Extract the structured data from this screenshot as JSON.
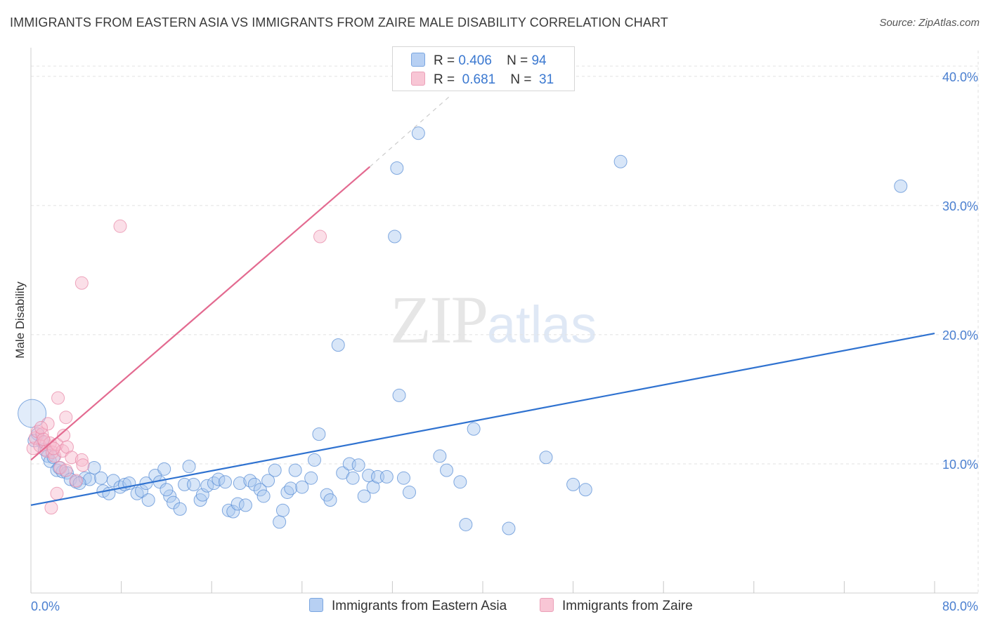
{
  "title": "IMMIGRANTS FROM EASTERN ASIA VS IMMIGRANTS FROM ZAIRE MALE DISABILITY CORRELATION CHART",
  "source": "Source: ZipAtlas.com",
  "watermark": {
    "zip": "ZIP",
    "atlas": "atlas"
  },
  "legend": {
    "rows": [
      {
        "r_label": "R =",
        "r_value": "0.406",
        "n_label": "N =",
        "n_value": "94"
      },
      {
        "r_label": "R =",
        "r_value": "0.681",
        "n_label": "N =",
        "n_value": "31"
      }
    ]
  },
  "colors": {
    "blue_fill": "#a9c8f0",
    "blue_stroke": "#5b8fd6",
    "blue_line": "#2f72d0",
    "pink_fill": "#f6b8cb",
    "pink_stroke": "#e88aa8",
    "pink_line": "#e36a90",
    "grid": "#e2e2e2",
    "tick_text": "#4a7fd0"
  },
  "chart_data": {
    "type": "scatter",
    "xlabel": "",
    "ylabel": "Male Disability",
    "xlim": [
      0,
      80
    ],
    "ylim": [
      0,
      42
    ],
    "x_tick_labels": [
      {
        "value": 0,
        "label": "0.0%"
      },
      {
        "value": 80,
        "label": "80.0%"
      }
    ],
    "y_ticks": [
      {
        "value": 10,
        "label": "10.0%"
      },
      {
        "value": 20,
        "label": "20.0%"
      },
      {
        "value": 30,
        "label": "30.0%"
      },
      {
        "value": 40,
        "label": "40.0%"
      }
    ],
    "grid": "horizontal dashed",
    "legend_position": "top-center",
    "series": [
      {
        "name": "Immigrants from Eastern Asia",
        "color": "#a9c8f0",
        "trend": {
          "x": [
            0,
            80
          ],
          "y": [
            6.8,
            20.1
          ]
        },
        "points": [
          {
            "x": 0.1,
            "y": 13.9,
            "big": true
          },
          {
            "x": 0.6,
            "y": 12.3
          },
          {
            "x": 1.0,
            "y": 11.7
          },
          {
            "x": 1.2,
            "y": 11.1
          },
          {
            "x": 1.5,
            "y": 10.6
          },
          {
            "x": 1.7,
            "y": 10.2
          },
          {
            "x": 2.0,
            "y": 10.5
          },
          {
            "x": 2.3,
            "y": 9.5
          },
          {
            "x": 2.8,
            "y": 9.4
          },
          {
            "x": 3.2,
            "y": 9.3
          },
          {
            "x": 3.5,
            "y": 8.8
          },
          {
            "x": 4.0,
            "y": 8.6
          },
          {
            "x": 4.8,
            "y": 8.9
          },
          {
            "x": 5.2,
            "y": 8.8
          },
          {
            "x": 5.6,
            "y": 9.7
          },
          {
            "x": 6.2,
            "y": 8.9
          },
          {
            "x": 6.4,
            "y": 7.9
          },
          {
            "x": 6.9,
            "y": 7.7
          },
          {
            "x": 7.3,
            "y": 8.7
          },
          {
            "x": 7.9,
            "y": 8.2
          },
          {
            "x": 8.3,
            "y": 8.4
          },
          {
            "x": 8.7,
            "y": 8.5
          },
          {
            "x": 9.4,
            "y": 7.7
          },
          {
            "x": 9.8,
            "y": 7.9
          },
          {
            "x": 10.2,
            "y": 8.5
          },
          {
            "x": 10.4,
            "y": 7.2
          },
          {
            "x": 11.0,
            "y": 9.1
          },
          {
            "x": 11.4,
            "y": 8.6
          },
          {
            "x": 11.8,
            "y": 9.6
          },
          {
            "x": 12.3,
            "y": 7.5
          },
          {
            "x": 12.6,
            "y": 7.0
          },
          {
            "x": 13.2,
            "y": 6.5
          },
          {
            "x": 13.6,
            "y": 8.4
          },
          {
            "x": 14.0,
            "y": 9.8
          },
          {
            "x": 14.4,
            "y": 8.4
          },
          {
            "x": 15.0,
            "y": 7.2
          },
          {
            "x": 15.2,
            "y": 7.6
          },
          {
            "x": 15.6,
            "y": 8.3
          },
          {
            "x": 16.2,
            "y": 8.5
          },
          {
            "x": 16.6,
            "y": 8.8
          },
          {
            "x": 17.2,
            "y": 8.6
          },
          {
            "x": 17.5,
            "y": 6.4
          },
          {
            "x": 17.9,
            "y": 6.3
          },
          {
            "x": 18.3,
            "y": 6.9
          },
          {
            "x": 18.5,
            "y": 8.5
          },
          {
            "x": 19.0,
            "y": 6.8
          },
          {
            "x": 19.4,
            "y": 8.7
          },
          {
            "x": 19.8,
            "y": 8.4
          },
          {
            "x": 20.3,
            "y": 8.0
          },
          {
            "x": 20.6,
            "y": 7.5
          },
          {
            "x": 21.0,
            "y": 8.7
          },
          {
            "x": 21.6,
            "y": 9.5
          },
          {
            "x": 22.0,
            "y": 5.5
          },
          {
            "x": 22.3,
            "y": 6.4
          },
          {
            "x": 22.7,
            "y": 7.8
          },
          {
            "x": 23.0,
            "y": 8.1
          },
          {
            "x": 23.4,
            "y": 9.5
          },
          {
            "x": 24.0,
            "y": 8.2
          },
          {
            "x": 24.8,
            "y": 8.9
          },
          {
            "x": 25.1,
            "y": 10.3
          },
          {
            "x": 25.5,
            "y": 12.3
          },
          {
            "x": 26.2,
            "y": 7.6
          },
          {
            "x": 26.5,
            "y": 7.2
          },
          {
            "x": 27.2,
            "y": 19.2
          },
          {
            "x": 27.6,
            "y": 9.3
          },
          {
            "x": 28.2,
            "y": 10.0
          },
          {
            "x": 28.5,
            "y": 8.9
          },
          {
            "x": 29.0,
            "y": 9.9
          },
          {
            "x": 29.5,
            "y": 7.5
          },
          {
            "x": 29.9,
            "y": 9.1
          },
          {
            "x": 30.3,
            "y": 8.2
          },
          {
            "x": 30.7,
            "y": 9.0
          },
          {
            "x": 31.5,
            "y": 9.0
          },
          {
            "x": 32.2,
            "y": 27.6
          },
          {
            "x": 32.4,
            "y": 32.9
          },
          {
            "x": 32.6,
            "y": 15.3
          },
          {
            "x": 33.0,
            "y": 8.9
          },
          {
            "x": 33.5,
            "y": 7.8
          },
          {
            "x": 34.3,
            "y": 35.6
          },
          {
            "x": 36.2,
            "y": 10.6
          },
          {
            "x": 36.8,
            "y": 9.5
          },
          {
            "x": 38.0,
            "y": 8.6
          },
          {
            "x": 38.5,
            "y": 5.3
          },
          {
            "x": 39.2,
            "y": 12.7
          },
          {
            "x": 42.3,
            "y": 5.0
          },
          {
            "x": 45.6,
            "y": 10.5
          },
          {
            "x": 48.0,
            "y": 8.4
          },
          {
            "x": 49.1,
            "y": 8.0
          },
          {
            "x": 52.2,
            "y": 33.4
          },
          {
            "x": 77.0,
            "y": 31.5
          },
          {
            "x": 0.3,
            "y": 11.8
          },
          {
            "x": 2.5,
            "y": 9.7
          },
          {
            "x": 4.3,
            "y": 8.5
          },
          {
            "x": 12.0,
            "y": 8.0
          }
        ]
      },
      {
        "name": "Immigrants from Zaire",
        "color": "#f6b8cb",
        "trend": {
          "x": [
            0,
            30
          ],
          "y": [
            10.3,
            33.0
          ]
        },
        "trend_dashed": {
          "x": [
            30,
            37
          ],
          "y": [
            33.0,
            38.4
          ]
        },
        "points": [
          {
            "x": 0.2,
            "y": 11.2
          },
          {
            "x": 0.4,
            "y": 12.0
          },
          {
            "x": 0.6,
            "y": 12.5
          },
          {
            "x": 0.8,
            "y": 11.4
          },
          {
            "x": 1.0,
            "y": 12.3
          },
          {
            "x": 1.2,
            "y": 11.7
          },
          {
            "x": 1.4,
            "y": 11.0
          },
          {
            "x": 1.5,
            "y": 13.1
          },
          {
            "x": 1.7,
            "y": 11.6
          },
          {
            "x": 1.9,
            "y": 10.9
          },
          {
            "x": 2.1,
            "y": 10.6
          },
          {
            "x": 2.3,
            "y": 11.5
          },
          {
            "x": 2.4,
            "y": 15.1
          },
          {
            "x": 2.6,
            "y": 9.7
          },
          {
            "x": 2.8,
            "y": 11.0
          },
          {
            "x": 2.9,
            "y": 12.2
          },
          {
            "x": 3.1,
            "y": 9.5
          },
          {
            "x": 3.2,
            "y": 11.3
          },
          {
            "x": 3.1,
            "y": 13.6
          },
          {
            "x": 3.6,
            "y": 10.5
          },
          {
            "x": 4.0,
            "y": 8.7
          },
          {
            "x": 4.5,
            "y": 10.3
          },
          {
            "x": 4.6,
            "y": 9.9
          },
          {
            "x": 4.5,
            "y": 24.0
          },
          {
            "x": 7.9,
            "y": 28.4
          },
          {
            "x": 25.6,
            "y": 27.6
          },
          {
            "x": 2.3,
            "y": 7.7
          },
          {
            "x": 1.8,
            "y": 6.6
          },
          {
            "x": 1.1,
            "y": 11.9
          },
          {
            "x": 0.9,
            "y": 12.8
          },
          {
            "x": 2.0,
            "y": 11.2
          }
        ]
      }
    ]
  }
}
